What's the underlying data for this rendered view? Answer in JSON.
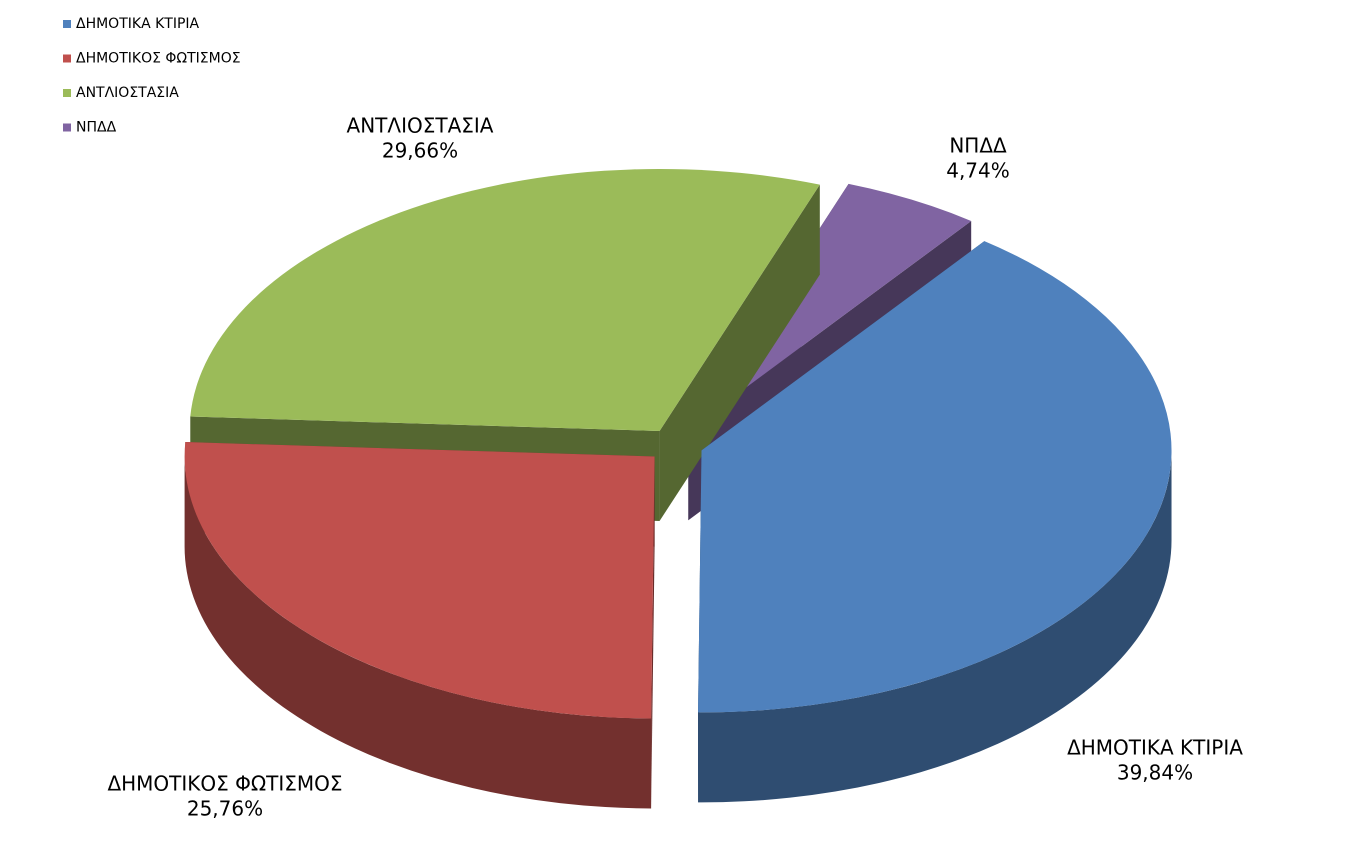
{
  "chart_data": {
    "type": "pie3d",
    "categories": [
      "ΔΗΜΟΤΙΚΑ ΚΤΙΡΙΑ",
      "ΔΗΜΟΤΙΚΟΣ ΦΩΤΙΣΜΟΣ",
      "ΑΝΤΛΙΟΣΤΑΣΙΑ",
      "ΝΠΔΔ"
    ],
    "values": [
      39.84,
      25.76,
      29.66,
      4.74
    ],
    "value_labels": [
      "39,84%",
      "25,76%",
      "29,66%",
      "4,74%"
    ],
    "colors": [
      "#4f81bd",
      "#c0504d",
      "#9bbb59",
      "#8064a2"
    ],
    "legend": "top-left"
  }
}
